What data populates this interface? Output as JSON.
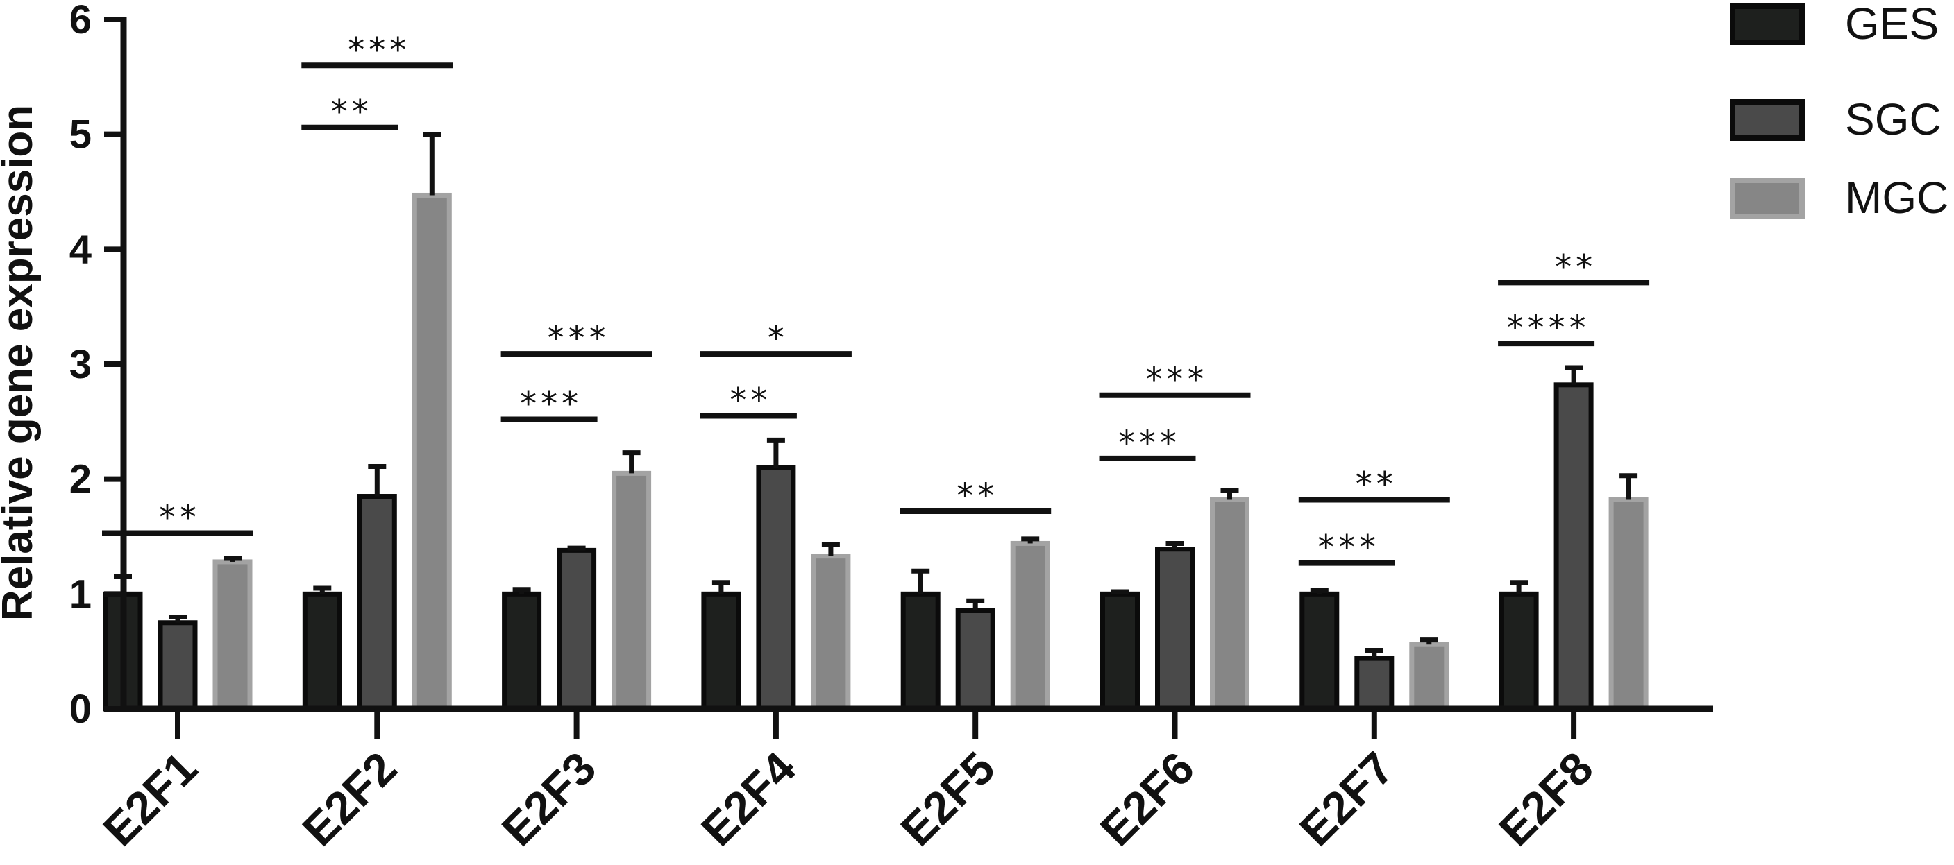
{
  "chart_data": {
    "type": "bar",
    "ylabel": "Relative gene expression",
    "xlabel": "",
    "ylim": [
      0,
      6
    ],
    "yticks": [
      "0",
      "1",
      "2",
      "3",
      "4",
      "5",
      "6"
    ],
    "categories": [
      "E2F1",
      "E2F2",
      "E2F3",
      "E2F4",
      "E2F5",
      "E2F6",
      "E2F7",
      "E2F8"
    ],
    "series": [
      {
        "name": "GES",
        "color": "#1e201e",
        "values": [
          1.0,
          1.0,
          1.0,
          1.0,
          1.0,
          1.0,
          1.0,
          1.0
        ],
        "errors": [
          0.15,
          0.05,
          0.04,
          0.1,
          0.2,
          0.02,
          0.03,
          0.1
        ]
      },
      {
        "name": "SGC",
        "color": "#4a4a4a",
        "values": [
          0.75,
          1.85,
          1.38,
          2.1,
          0.86,
          1.39,
          0.44,
          2.82
        ],
        "errors": [
          0.05,
          0.26,
          0.02,
          0.24,
          0.08,
          0.05,
          0.07,
          0.15
        ]
      },
      {
        "name": "MGC",
        "color": "#868686",
        "values": [
          1.28,
          4.47,
          2.05,
          1.33,
          1.44,
          1.82,
          0.56,
          1.82
        ],
        "errors": [
          0.03,
          0.53,
          0.18,
          0.1,
          0.04,
          0.08,
          0.04,
          0.21
        ]
      }
    ],
    "significance": [
      {
        "category": 0,
        "from": "GES",
        "to": "MGC",
        "y": 1.53,
        "label": "**"
      },
      {
        "category": 1,
        "from": "GES",
        "to": "SGC",
        "y": 5.06,
        "label": "**"
      },
      {
        "category": 1,
        "from": "GES",
        "to": "MGC",
        "y": 5.6,
        "label": "***"
      },
      {
        "category": 2,
        "from": "GES",
        "to": "SGC",
        "y": 2.52,
        "label": "***"
      },
      {
        "category": 2,
        "from": "GES",
        "to": "MGC",
        "y": 3.09,
        "label": "***"
      },
      {
        "category": 3,
        "from": "GES",
        "to": "SGC",
        "y": 2.55,
        "label": "**"
      },
      {
        "category": 3,
        "from": "GES",
        "to": "MGC",
        "y": 3.09,
        "label": "*"
      },
      {
        "category": 4,
        "from": "GES",
        "to": "MGC",
        "y": 1.72,
        "label": "**"
      },
      {
        "category": 5,
        "from": "GES",
        "to": "SGC",
        "y": 2.18,
        "label": "***"
      },
      {
        "category": 5,
        "from": "GES",
        "to": "MGC",
        "y": 2.73,
        "label": "***"
      },
      {
        "category": 6,
        "from": "GES",
        "to": "SGC",
        "y": 1.27,
        "label": "***"
      },
      {
        "category": 6,
        "from": "GES",
        "to": "MGC",
        "y": 1.82,
        "label": "**"
      },
      {
        "category": 7,
        "from": "GES",
        "to": "SGC",
        "y": 3.18,
        "label": "****"
      },
      {
        "category": 7,
        "from": "GES",
        "to": "MGC",
        "y": 3.71,
        "label": "**"
      }
    ],
    "legend_position": "top-right",
    "grid": false
  }
}
